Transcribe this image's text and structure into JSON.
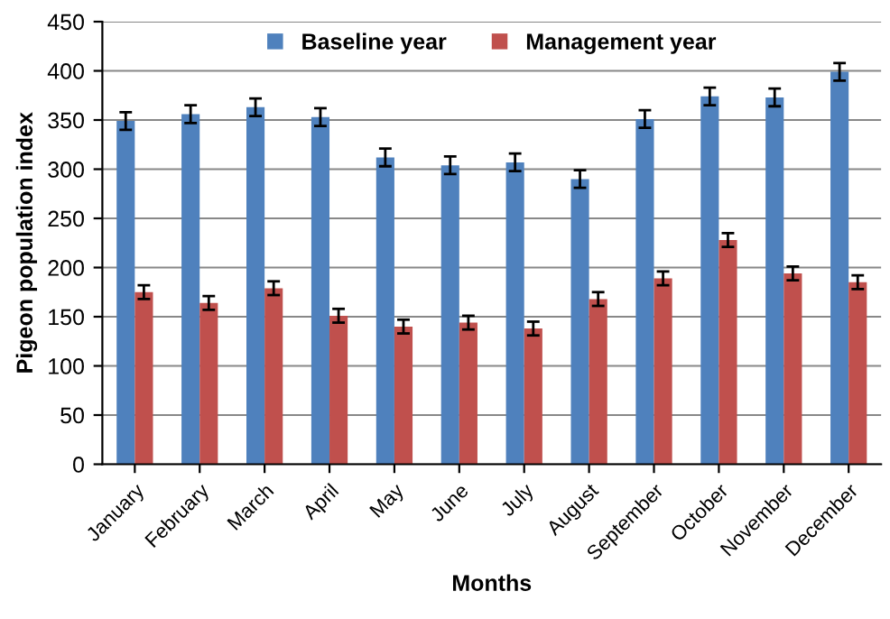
{
  "chart_data": {
    "type": "bar",
    "xlabel": "Months",
    "ylabel": "Pigeon population index",
    "categories": [
      "January",
      "February",
      "March",
      "April",
      "May",
      "June",
      "July",
      "August",
      "September",
      "October",
      "November",
      "December"
    ],
    "series": [
      {
        "name": "Baseline year",
        "color": "#4f81bd",
        "values": [
          349,
          356,
          363,
          353,
          312,
          304,
          307,
          290,
          351,
          374,
          373,
          399
        ],
        "errors": [
          9,
          9,
          9,
          9,
          9,
          9,
          9,
          9,
          9,
          9,
          9,
          9
        ]
      },
      {
        "name": "Management year",
        "color": "#c0504d",
        "values": [
          175,
          164,
          179,
          151,
          140,
          144,
          138,
          168,
          189,
          228,
          194,
          185
        ],
        "errors": [
          7,
          7,
          7,
          7,
          7,
          7,
          7,
          7,
          7,
          7,
          7,
          7
        ]
      }
    ],
    "ylim": [
      0,
      450
    ],
    "yticks": [
      0,
      50,
      100,
      150,
      200,
      250,
      300,
      350,
      400,
      450
    ],
    "grid": "y",
    "legend": "top"
  }
}
